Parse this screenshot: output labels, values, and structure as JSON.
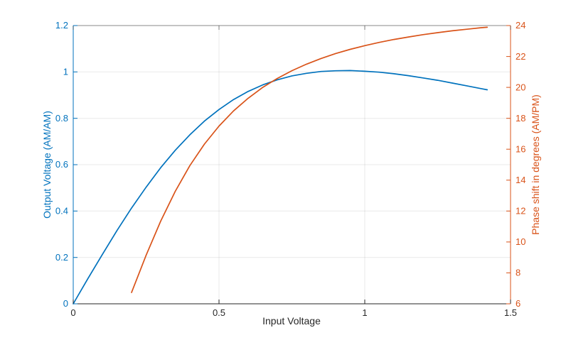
{
  "figure": {
    "background": "#ffffff",
    "xlabel": "Input Voltage",
    "ylabel_left": "Output Voltage (AM/AM)",
    "ylabel_right": "Phase shift in degrees (AM/PM)"
  },
  "chart_data": {
    "type": "line",
    "title": "",
    "grid": true,
    "legend": "none",
    "xlabel": "Input Voltage",
    "xlim": [
      0,
      1.5
    ],
    "xticks": [
      0,
      0.5,
      1,
      1.5
    ],
    "x_axis_color": "#262626",
    "axes": {
      "left": {
        "label": "Output Voltage (AM/AM)",
        "color": "#0072BD",
        "ylim": [
          0,
          1.2
        ],
        "yticks": [
          0,
          0.2,
          0.4,
          0.6,
          0.8,
          1,
          1.2
        ]
      },
      "right": {
        "label": "Phase shift in degrees (AM/PM)",
        "color": "#D95319",
        "ylim": [
          6,
          24
        ],
        "yticks": [
          6,
          8,
          10,
          12,
          14,
          16,
          18,
          20,
          22,
          24
        ]
      }
    },
    "series": [
      {
        "name": "AM/AM",
        "axis": "left",
        "color": "#0072BD",
        "x": [
          0,
          0.05,
          0.1,
          0.15,
          0.2,
          0.25,
          0.3,
          0.35,
          0.4,
          0.45,
          0.5,
          0.55,
          0.6,
          0.65,
          0.7,
          0.75,
          0.8,
          0.85,
          0.9,
          0.95,
          1,
          1.05,
          1.1,
          1.15,
          1.2,
          1.25,
          1.3,
          1.35,
          1.4,
          1.42
        ],
        "y": [
          0,
          0.108,
          0.213,
          0.316,
          0.413,
          0.503,
          0.587,
          0.662,
          0.729,
          0.788,
          0.838,
          0.881,
          0.916,
          0.944,
          0.966,
          0.983,
          0.994,
          1.002,
          1.005,
          1.006,
          1.003,
          0.999,
          0.992,
          0.984,
          0.974,
          0.964,
          0.952,
          0.94,
          0.928,
          0.923
        ]
      },
      {
        "name": "AM/PM",
        "axis": "right",
        "color": "#D95319",
        "x": [
          0.2,
          0.25,
          0.3,
          0.35,
          0.4,
          0.45,
          0.5,
          0.55,
          0.6,
          0.65,
          0.7,
          0.75,
          0.8,
          0.85,
          0.9,
          0.95,
          1,
          1.05,
          1.1,
          1.15,
          1.2,
          1.25,
          1.3,
          1.35,
          1.4,
          1.42
        ],
        "y": [
          6.73,
          9.14,
          11.35,
          13.28,
          14.94,
          16.33,
          17.5,
          18.48,
          19.3,
          20.0,
          20.58,
          21.08,
          21.5,
          21.87,
          22.19,
          22.46,
          22.7,
          22.91,
          23.1,
          23.26,
          23.41,
          23.54,
          23.66,
          23.76,
          23.86,
          23.89
        ]
      }
    ]
  }
}
